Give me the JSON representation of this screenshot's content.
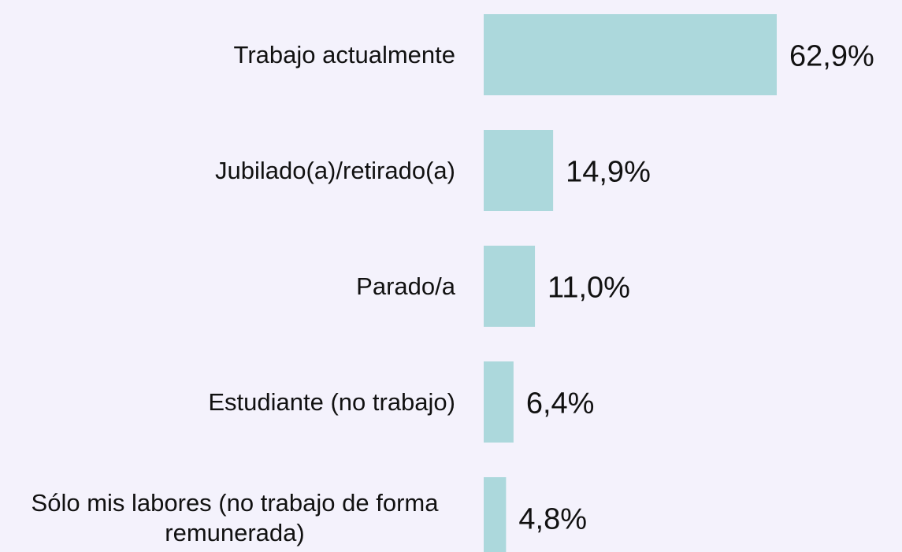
{
  "chart_data": {
    "type": "bar",
    "orientation": "horizontal",
    "categories": [
      "Trabajo actualmente",
      "Jubilado(a)/retirado(a)",
      "Parado/a",
      "Estudiante (no trabajo)",
      "Sólo mis labores (no trabajo de forma remunerada)"
    ],
    "values": [
      62.9,
      14.9,
      11.0,
      6.4,
      4.8
    ],
    "value_labels": [
      "62,9%",
      "14,9%",
      "11,0%",
      "6,4%",
      "4,8%"
    ],
    "color": "#acd8dc"
  }
}
